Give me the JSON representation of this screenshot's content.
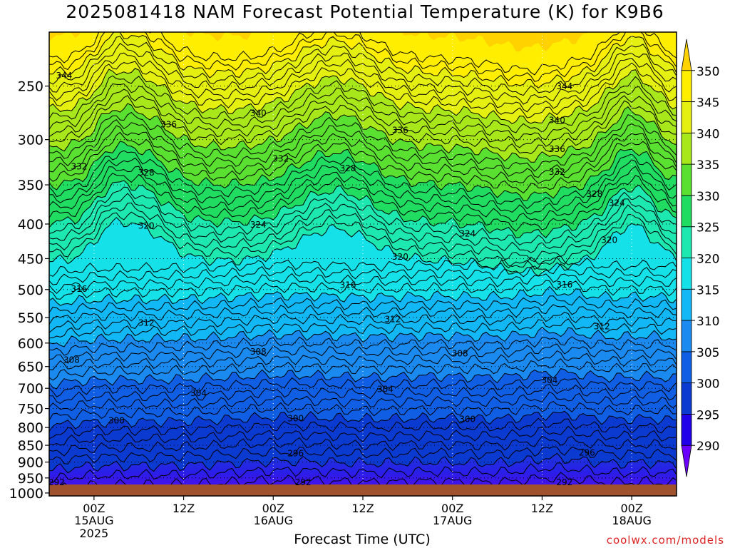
{
  "title": "2025081418 NAM Forecast Potential Temperature (K) for K9B6",
  "credit": "coolwx.com/models",
  "colors": {
    "ground": "#a0522d",
    "scale": [
      "#6a00ff",
      "#1f00e8",
      "#0a3ad0",
      "#0f5ee4",
      "#1a8af0",
      "#12b8f5",
      "#14e2e8",
      "#1ce8b0",
      "#20dc60",
      "#5ae030",
      "#a8e81a",
      "#e6f010",
      "#ffee00",
      "#ffd200"
    ]
  },
  "chart_data": {
    "type": "heatmap",
    "title": "2025081418 NAM Forecast Potential Temperature (K) for K9B6",
    "xlabel": "Forecast Time (UTC)",
    "ylabel": "",
    "x_ticks": [
      {
        "hour": 6,
        "label": "00Z",
        "date": "15AUG",
        "year": "2025"
      },
      {
        "hour": 18,
        "label": "12Z",
        "date": "",
        "year": ""
      },
      {
        "hour": 30,
        "label": "00Z",
        "date": "16AUG",
        "year": ""
      },
      {
        "hour": 42,
        "label": "12Z",
        "date": "",
        "year": ""
      },
      {
        "hour": 54,
        "label": "00Z",
        "date": "17AUG",
        "year": ""
      },
      {
        "hour": 66,
        "label": "12Z",
        "date": "",
        "year": ""
      },
      {
        "hour": 78,
        "label": "00Z",
        "date": "18AUG",
        "year": ""
      }
    ],
    "y_ticks": [
      250,
      300,
      350,
      400,
      450,
      500,
      550,
      600,
      650,
      700,
      750,
      800,
      850,
      900,
      950,
      1000
    ],
    "colorbar_ticks": [
      290,
      295,
      300,
      305,
      310,
      315,
      320,
      325,
      330,
      335,
      340,
      345,
      350
    ],
    "contours": [
      {
        "value": 292,
        "labels": [
          {
            "hour": 1,
            "label": "292"
          },
          {
            "hour": 34,
            "label": "292"
          },
          {
            "hour": 69,
            "label": "292"
          }
        ]
      },
      {
        "value": 296,
        "labels": [
          {
            "hour": 33,
            "label": "296"
          },
          {
            "hour": 72,
            "label": "296"
          }
        ]
      },
      {
        "value": 300,
        "labels": [
          {
            "hour": 9,
            "label": "300"
          },
          {
            "hour": 33,
            "label": "300"
          },
          {
            "hour": 56,
            "label": "300"
          }
        ]
      },
      {
        "value": 304,
        "labels": [
          {
            "hour": 20,
            "label": "304"
          },
          {
            "hour": 45,
            "label": "304"
          },
          {
            "hour": 67,
            "label": "304"
          }
        ]
      },
      {
        "value": 308,
        "labels": [
          {
            "hour": 3,
            "label": "308"
          },
          {
            "hour": 28,
            "label": "308"
          },
          {
            "hour": 55,
            "label": "308"
          }
        ]
      },
      {
        "value": 312,
        "labels": [
          {
            "hour": 13,
            "label": "312"
          },
          {
            "hour": 46,
            "label": "312"
          },
          {
            "hour": 74,
            "label": "312"
          }
        ]
      },
      {
        "value": 316,
        "labels": [
          {
            "hour": 4,
            "label": "316"
          },
          {
            "hour": 40,
            "label": "316"
          },
          {
            "hour": 69,
            "label": "316"
          }
        ]
      },
      {
        "value": 320,
        "labels": [
          {
            "hour": 13,
            "label": "320"
          },
          {
            "hour": 47,
            "label": "320"
          },
          {
            "hour": 75,
            "label": "320"
          }
        ]
      },
      {
        "value": 324,
        "labels": [
          {
            "hour": 28,
            "label": "324"
          },
          {
            "hour": 56,
            "label": "324"
          },
          {
            "hour": 76,
            "label": "324"
          }
        ]
      },
      {
        "value": 328,
        "labels": [
          {
            "hour": 13,
            "label": "328"
          },
          {
            "hour": 40,
            "label": "328"
          },
          {
            "hour": 73,
            "label": "328"
          }
        ]
      },
      {
        "value": 332,
        "labels": [
          {
            "hour": 4,
            "label": "332"
          },
          {
            "hour": 31,
            "label": "332"
          },
          {
            "hour": 68,
            "label": "332"
          }
        ]
      },
      {
        "value": 336,
        "labels": [
          {
            "hour": 16,
            "label": "336"
          },
          {
            "hour": 47,
            "label": "336"
          },
          {
            "hour": 68,
            "label": "336"
          }
        ]
      },
      {
        "value": 340,
        "labels": [
          {
            "hour": 28,
            "label": "340"
          },
          {
            "hour": 68,
            "label": "340"
          }
        ]
      },
      {
        "value": 344,
        "labels": [
          {
            "hour": 2,
            "label": "344"
          },
          {
            "hour": 69,
            "label": "344"
          }
        ]
      }
    ]
  }
}
